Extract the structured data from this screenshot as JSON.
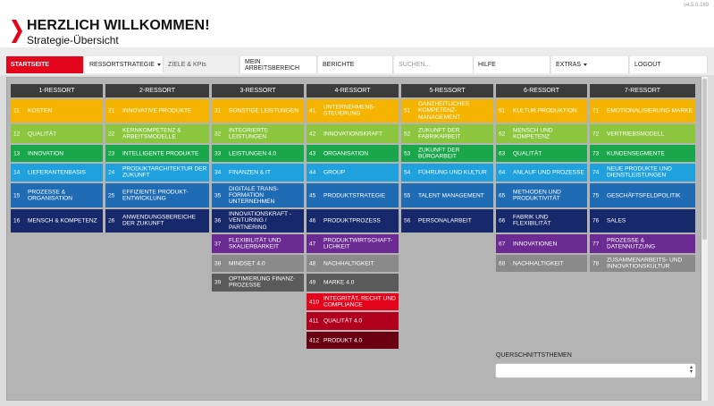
{
  "header": {
    "title": "HERZLICH WILLKOMMEN!",
    "subtitle": "Strategie-Übersicht",
    "version": "v4.5.0.189"
  },
  "nav": [
    {
      "label": "STARTSEITE",
      "name": "nav-startseite",
      "active": true
    },
    {
      "label": "RESSORTSTRATEGIE",
      "name": "nav-ressortstrategie",
      "dropdown": true
    },
    {
      "label": "ZIELE & KPIs",
      "name": "nav-ziele-kpis",
      "gray": true
    },
    {
      "label": "MEIN ARBEITSBEREICH",
      "name": "nav-mein-arbeitsbereich"
    },
    {
      "label": "BERICHTE",
      "name": "nav-berichte"
    },
    {
      "placeholder": "SUCHEN...",
      "name": "nav-search-input"
    },
    {
      "label": "HILFE",
      "name": "nav-hilfe"
    },
    {
      "label": "EXTRAS",
      "name": "nav-extras",
      "dropdown": true
    },
    {
      "label": "LOGOUT",
      "name": "nav-logout"
    }
  ],
  "columns": [
    {
      "title": "1-RESSORT",
      "items": [
        {
          "num": "11",
          "label": "KOSTEN",
          "color": "#f4b400"
        },
        {
          "num": "12",
          "label": "QUALITÄT",
          "color": "#8cc63f"
        },
        {
          "num": "13",
          "label": "INNOVATION",
          "color": "#1aa64a"
        },
        {
          "num": "14",
          "label": "LIEFERANTENBASIS",
          "color": "#1ea1dc"
        },
        {
          "num": "15",
          "label": "PROZESSE & ORGANISATION",
          "color": "#1f6cb5"
        },
        {
          "num": "16",
          "label": "MENSCH & KOMPETENZ",
          "color": "#17296b"
        }
      ]
    },
    {
      "title": "2-RESSORT",
      "items": [
        {
          "num": "21",
          "label": "INNOVATIVE PRODUKTE",
          "color": "#f4b400"
        },
        {
          "num": "22",
          "label": "KERNKOMPETENZ & ARBEITSMODELLE",
          "color": "#8cc63f"
        },
        {
          "num": "23",
          "label": "INTELLIGENTE PRODUKTE",
          "color": "#1aa64a"
        },
        {
          "num": "24",
          "label": "PRODUKTARCHITEKTUR DER ZUKUNFT",
          "color": "#1ea1dc"
        },
        {
          "num": "25",
          "label": "EFFIZIENTE PRODUKT-ENTWICKLUNG",
          "color": "#1f6cb5"
        },
        {
          "num": "26",
          "label": "ANWENDUNGSBEREICHE DER ZUKUNFT",
          "color": "#17296b"
        }
      ]
    },
    {
      "title": "3-RESSORT",
      "items": [
        {
          "num": "31",
          "label": "SONSTIGE LEISTUNGEN",
          "color": "#f4b400"
        },
        {
          "num": "32",
          "label": "INTEGRIERTE LEISTUNGEN",
          "color": "#8cc63f"
        },
        {
          "num": "33",
          "label": "LEISTUNGEN 4.0",
          "color": "#1aa64a"
        },
        {
          "num": "34",
          "label": "FINANZEN & IT",
          "color": "#1ea1dc"
        },
        {
          "num": "35",
          "label": "DIGITALE TRANS-FORMATION UNTERNEHMEN",
          "color": "#1f6cb5"
        },
        {
          "num": "36",
          "label": "INNOVATIONSKRAFT - VENTURING / PARTNERING",
          "color": "#17296b"
        },
        {
          "num": "37",
          "label": "FLEXIBILITÄT UND SKALIERBARKEIT",
          "color": "#6c2b93"
        },
        {
          "num": "38",
          "label": "MINDSET 4.0",
          "color": "#8a8a8a"
        },
        {
          "num": "39",
          "label": "OPTIMIERUNG FINANZ-PROZESSE",
          "color": "#5a5a5a"
        }
      ]
    },
    {
      "title": "4-RESSORT",
      "items": [
        {
          "num": "41",
          "label": "UNTERNEHMENS-STEUERUNG",
          "color": "#f4b400"
        },
        {
          "num": "42",
          "label": "INNOVATIONSKRAFT",
          "color": "#8cc63f"
        },
        {
          "num": "43",
          "label": "ORGANISATION",
          "color": "#1aa64a"
        },
        {
          "num": "44",
          "label": "GROUP",
          "color": "#1ea1dc"
        },
        {
          "num": "45",
          "label": "PRODUKTSTRATEGIE",
          "color": "#1f6cb5"
        },
        {
          "num": "46",
          "label": "PRODUKTPROZESS",
          "color": "#17296b"
        },
        {
          "num": "47",
          "label": "PRODUKTWIRTSCHAFT-LICHKEIT",
          "color": "#6c2b93"
        },
        {
          "num": "48",
          "label": "NACHHALTIGKEIT",
          "color": "#8a8a8a"
        },
        {
          "num": "49",
          "label": "MARKE 4.0",
          "color": "#5a5a5a"
        },
        {
          "num": "410",
          "label": "INTEGRITÄT, RECHT UND COMPLIANCE",
          "color": "#e3051b"
        },
        {
          "num": "411",
          "label": "QUALITÄT 4.0",
          "color": "#b0001e"
        },
        {
          "num": "412",
          "label": "PRODUKT 4.0",
          "color": "#6a0012"
        }
      ]
    },
    {
      "title": "5-RESSORT",
      "items": [
        {
          "num": "51",
          "label": "GANZHEITLICHES KOMPETENZ-MANAGEMENT",
          "color": "#f4b400"
        },
        {
          "num": "52",
          "label": "ZUKUNFT DER FABRIKARBEIT",
          "color": "#8cc63f"
        },
        {
          "num": "53",
          "label": "ZUKUNFT DER BÜROARBEIT",
          "color": "#1aa64a"
        },
        {
          "num": "54",
          "label": "FÜHRUNG UND KULTUR",
          "color": "#1ea1dc"
        },
        {
          "num": "55",
          "label": "TALENT MANAGEMENT",
          "color": "#1f6cb5"
        },
        {
          "num": "56",
          "label": "PERSONALARBEIT",
          "color": "#17296b"
        }
      ]
    },
    {
      "title": "6-RESSORT",
      "items": [
        {
          "num": "61",
          "label": "KULTUR PRODUKTION",
          "color": "#f4b400"
        },
        {
          "num": "62",
          "label": "MENSCH UND KOMPETENZ",
          "color": "#8cc63f"
        },
        {
          "num": "63",
          "label": "QUALITÄT",
          "color": "#1aa64a"
        },
        {
          "num": "64",
          "label": "ANLAUF UND PROZESSE",
          "color": "#1ea1dc"
        },
        {
          "num": "65",
          "label": "METHODEN UND PRODUKTIVITÄT",
          "color": "#1f6cb5"
        },
        {
          "num": "66",
          "label": "FABRIK UND FLEXIBILITÄT",
          "color": "#17296b"
        },
        {
          "num": "67",
          "label": "INNOVATIONEN",
          "color": "#6c2b93"
        },
        {
          "num": "68",
          "label": "NACHHALTIGKEIT",
          "color": "#8a8a8a"
        }
      ]
    },
    {
      "title": "7-RESSORT",
      "items": [
        {
          "num": "71",
          "label": "EMOTIONALISIERUNG MARKE",
          "color": "#f4b400"
        },
        {
          "num": "72",
          "label": "VERTRIEBSMODELL",
          "color": "#8cc63f"
        },
        {
          "num": "73",
          "label": "KUNDENSEGMENTE",
          "color": "#1aa64a"
        },
        {
          "num": "74",
          "label": "NEUE PRODUKTE UND DIENSTLEISTUNGEN",
          "color": "#1ea1dc"
        },
        {
          "num": "75",
          "label": "GESCHÄFTSFELDPOLITIK",
          "color": "#1f6cb5"
        },
        {
          "num": "76",
          "label": "SALES",
          "color": "#17296b"
        },
        {
          "num": "77",
          "label": "PROZESSE & DATENNUTZUNG",
          "color": "#6c2b93"
        },
        {
          "num": "78",
          "label": "ZUSAMMENARBEITS- UND INNOVATIONSKULTUR",
          "color": "#8a8a8a"
        }
      ]
    }
  ],
  "querschnitt": {
    "label": "QUERSCHNITTSTHEMEN",
    "selected": ""
  }
}
